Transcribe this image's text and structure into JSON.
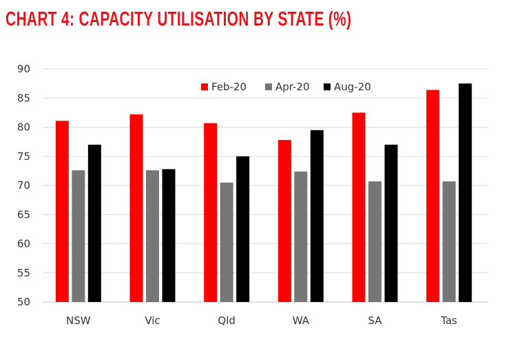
{
  "chart_data": {
    "type": "bar",
    "title": "CHART 4: CAPACITY UTILISATION BY STATE (%)",
    "xlabel": "",
    "ylabel": "",
    "ylim": [
      50,
      90
    ],
    "yticks": [
      50,
      55,
      60,
      65,
      70,
      75,
      80,
      85,
      90
    ],
    "grid": true,
    "legend": "top-center",
    "categories": [
      "NSW",
      "Vic",
      "Qld",
      "WA",
      "SA",
      "Tas"
    ],
    "series": [
      {
        "name": "Feb-20",
        "color": "#ff0000",
        "values": [
          81.1,
          82.2,
          80.7,
          77.8,
          82.5,
          86.4
        ]
      },
      {
        "name": "Apr-20",
        "color": "#767676",
        "values": [
          72.6,
          72.6,
          70.5,
          72.4,
          70.7,
          70.7
        ]
      },
      {
        "name": "Aug-20",
        "color": "#000000",
        "values": [
          77.0,
          72.8,
          75.0,
          79.5,
          77.0,
          87.5
        ]
      }
    ]
  }
}
